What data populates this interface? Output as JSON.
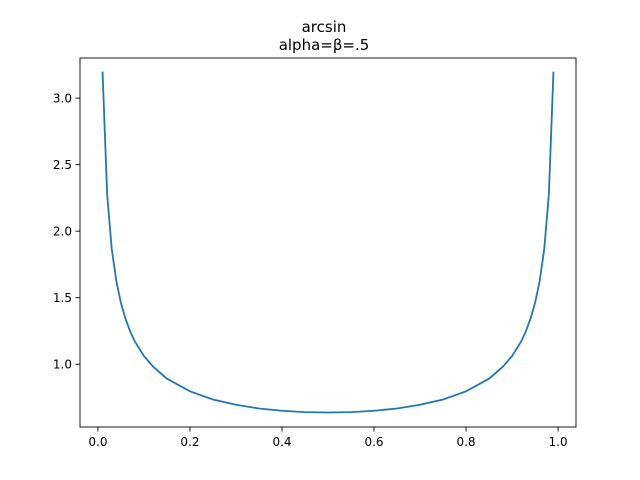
{
  "chart_data": {
    "type": "line",
    "title": "arcsin",
    "subtitle": "alpha=β=.5",
    "xlabel": "",
    "ylabel": "",
    "xlim": [
      -0.039,
      1.039
    ],
    "ylim": [
      0.5279,
      3.3017
    ],
    "xticks": [
      {
        "value": 0.0,
        "label": "0.0"
      },
      {
        "value": 0.2,
        "label": "0.2"
      },
      {
        "value": 0.4,
        "label": "0.4"
      },
      {
        "value": 0.6,
        "label": "0.6"
      },
      {
        "value": 0.8,
        "label": "0.8"
      },
      {
        "value": 1.0,
        "label": "1.0"
      }
    ],
    "yticks": [
      {
        "value": 1.0,
        "label": "1.0"
      },
      {
        "value": 1.5,
        "label": "1.5"
      },
      {
        "value": 2.0,
        "label": "2.0"
      },
      {
        "value": 2.5,
        "label": "2.5"
      },
      {
        "value": 3.0,
        "label": "3.0"
      }
    ],
    "grid": false,
    "line_color": "#1f77b4",
    "series": [
      {
        "x": [
          0.01,
          0.02,
          0.03,
          0.04,
          0.05,
          0.06,
          0.07,
          0.08,
          0.1,
          0.12,
          0.15,
          0.2,
          0.25,
          0.3,
          0.35,
          0.4,
          0.45,
          0.5,
          0.55,
          0.6,
          0.65,
          0.7,
          0.75,
          0.8,
          0.85,
          0.88,
          0.9,
          0.92,
          0.93,
          0.94,
          0.95,
          0.96,
          0.97,
          0.98,
          0.99
        ],
        "y": [
          3.199,
          2.274,
          1.866,
          1.624,
          1.46,
          1.34,
          1.247,
          1.172,
          1.061,
          0.981,
          0.891,
          0.796,
          0.735,
          0.695,
          0.667,
          0.65,
          0.64,
          0.637,
          0.64,
          0.65,
          0.667,
          0.695,
          0.735,
          0.796,
          0.891,
          0.981,
          1.061,
          1.172,
          1.247,
          1.34,
          1.46,
          1.624,
          1.866,
          2.274,
          3.199
        ]
      }
    ]
  }
}
